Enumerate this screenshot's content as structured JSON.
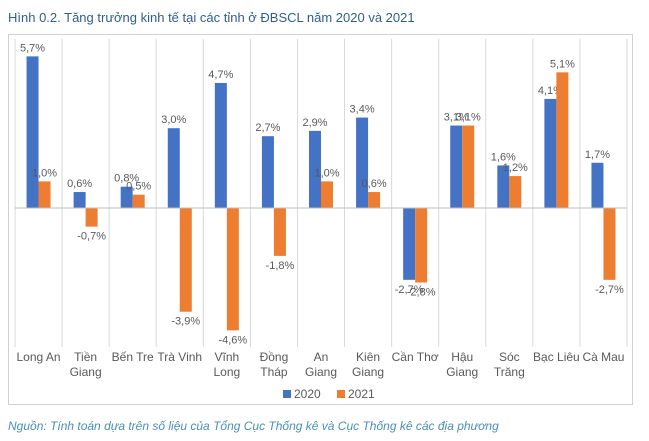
{
  "title": "Hình 0.2. Tăng trưởng kinh tế tại các tỉnh ở ĐBSCL năm 2020 và 2021",
  "source": "Nguồn: Tính toán dựa trên số liệu của Tổng Cục Thống kê và Cục Thống kê các địa phương",
  "chart_data": {
    "type": "bar",
    "title": "Hình 0.2. Tăng trưởng kinh tế tại các tỉnh ở ĐBSCL năm 2020 và 2021",
    "xlabel": "",
    "ylabel": "",
    "ylim": [
      -5,
      6
    ],
    "grid": "vertical separators",
    "legend_position": "bottom",
    "categories": [
      [
        "Long An"
      ],
      [
        "Tiền",
        "Giang"
      ],
      [
        "Bến Tre"
      ],
      [
        "Trà Vinh"
      ],
      [
        "Vĩnh",
        "Long"
      ],
      [
        "Đồng",
        "Tháp"
      ],
      [
        "An",
        "Giang"
      ],
      [
        "Kiên",
        "Giang"
      ],
      [
        "Cần Thơ"
      ],
      [
        "Hậu",
        "Giang"
      ],
      [
        "Sóc",
        "Trăng"
      ],
      [
        "Bạc Liêu"
      ],
      [
        "Cà Mau"
      ]
    ],
    "series": [
      {
        "name": "2020",
        "color": "#4472c4",
        "values": [
          5.7,
          0.6,
          0.8,
          3.0,
          4.7,
          2.7,
          2.9,
          3.4,
          -2.7,
          3.1,
          1.6,
          4.1,
          1.7
        ],
        "labels": [
          "5,7%",
          "0,6%",
          "0,8%",
          "3,0%",
          "4,7%",
          "2,7%",
          "2,9%",
          "3,4%",
          "-2,7%",
          "3,1%",
          "1,6%",
          "4,1%",
          "1,7%"
        ]
      },
      {
        "name": "2021",
        "color": "#ed7d31",
        "values": [
          1.0,
          -0.7,
          0.5,
          -3.9,
          -4.6,
          -1.8,
          1.0,
          0.6,
          -2.8,
          3.1,
          1.2,
          5.1,
          -2.7
        ],
        "labels": [
          "1,0%",
          "-0,7%",
          "0,5%",
          "-3,9%",
          "-4,6%",
          "-1,8%",
          "1,0%",
          "0,6%",
          "-2,8%",
          "3,1%",
          "1,2%",
          "5,1%",
          "-2,7%"
        ]
      }
    ]
  }
}
